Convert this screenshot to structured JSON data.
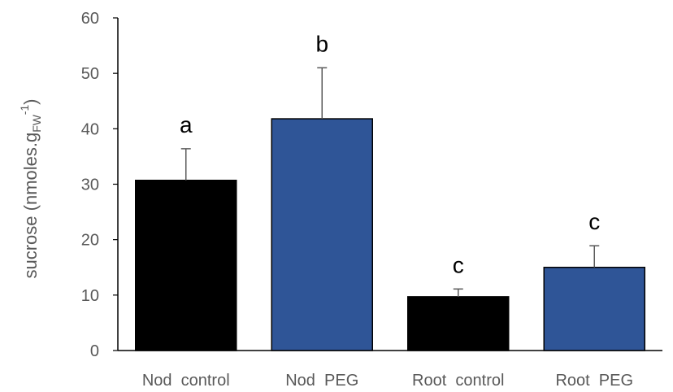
{
  "chart_data": {
    "type": "bar",
    "categories": [
      "Nod  control",
      "Nod  PEG",
      "Root  control",
      "Root  PEG"
    ],
    "values": [
      30.7,
      41.8,
      9.7,
      15.0
    ],
    "errors": [
      5.7,
      9.2,
      1.4,
      3.9
    ],
    "significance_labels": [
      "a",
      "b",
      "c",
      "c"
    ],
    "bar_colors": [
      "#000000",
      "#2F5597",
      "#000000",
      "#2F5597"
    ],
    "title": "",
    "xlabel": "",
    "ylabel": {
      "main": "sucrose (nmoles.g",
      "subscript": "FW",
      "superscript": "-1",
      "close": ")"
    },
    "ylim": [
      0,
      60
    ],
    "yticks": [
      0,
      10,
      20,
      30,
      40,
      50,
      60
    ],
    "grid": false,
    "legend": "none"
  }
}
